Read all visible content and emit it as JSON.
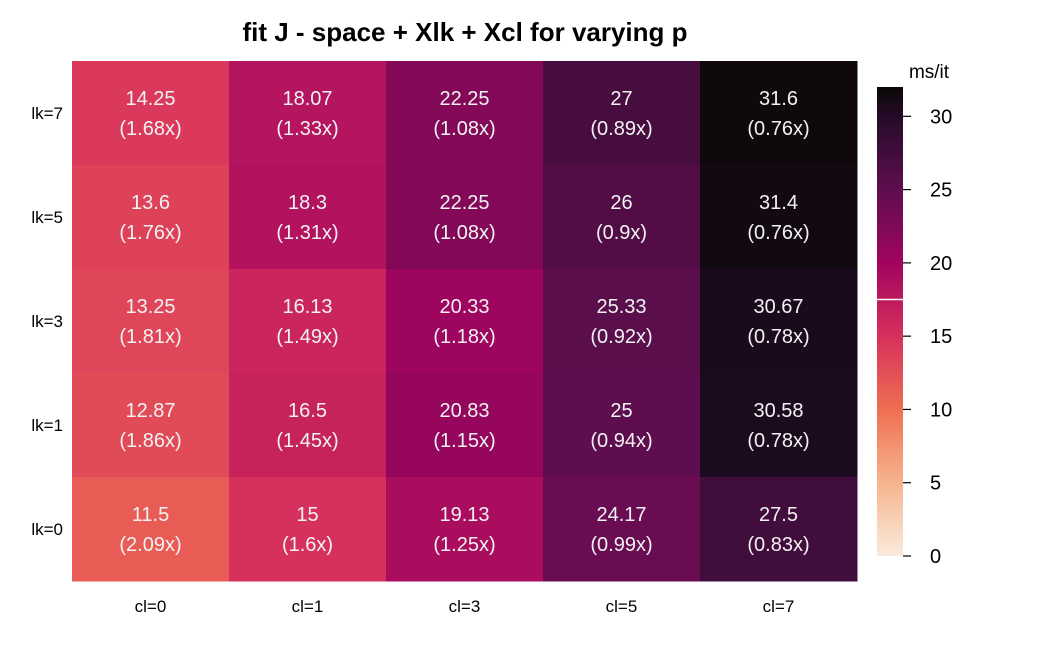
{
  "chart_data": {
    "type": "heatmap",
    "title": "fit J - space + Xlk + Xcl for varying p",
    "columns": [
      "cl=0",
      "cl=1",
      "cl=3",
      "cl=5",
      "cl=7"
    ],
    "rows": [
      "lk=7",
      "lk=5",
      "lk=3",
      "lk=1",
      "lk=0"
    ],
    "values": [
      [
        14.25,
        18.07,
        22.25,
        27,
        31.6
      ],
      [
        13.6,
        18.3,
        22.25,
        26,
        31.4
      ],
      [
        13.25,
        16.13,
        20.33,
        25.33,
        30.67
      ],
      [
        12.87,
        16.5,
        20.83,
        25,
        30.58
      ],
      [
        11.5,
        15,
        19.13,
        24.17,
        27.5
      ]
    ],
    "labels": [
      [
        "14.25",
        "18.07",
        "22.25",
        "27",
        "31.6"
      ],
      [
        "13.6",
        "18.3",
        "22.25",
        "26",
        "31.4"
      ],
      [
        "13.25",
        "16.13",
        "20.33",
        "25.33",
        "30.67"
      ],
      [
        "12.87",
        "16.5",
        "20.83",
        "25",
        "30.58"
      ],
      [
        "11.5",
        "15",
        "19.13",
        "24.17",
        "27.5"
      ]
    ],
    "speedups": [
      [
        "(1.68x)",
        "(1.33x)",
        "(1.08x)",
        "(0.89x)",
        "(0.76x)"
      ],
      [
        "(1.76x)",
        "(1.31x)",
        "(1.08x)",
        "(0.9x)",
        "(0.76x)"
      ],
      [
        "(1.81x)",
        "(1.49x)",
        "(1.18x)",
        "(0.92x)",
        "(0.78x)"
      ],
      [
        "(1.86x)",
        "(1.45x)",
        "(1.15x)",
        "(0.94x)",
        "(0.78x)"
      ],
      [
        "(2.09x)",
        "(1.6x)",
        "(1.25x)",
        "(0.99x)",
        "(0.83x)"
      ]
    ],
    "legend": {
      "title": "ms/it",
      "range": [
        0,
        32
      ],
      "ticks": [
        "0",
        "5",
        "10",
        "15",
        "20",
        "25",
        "30"
      ],
      "tick_values": [
        0,
        5,
        10,
        15,
        20,
        25,
        30
      ],
      "marker_value": 17.5,
      "placement": "right"
    },
    "colormap_stops": [
      {
        "value": 0,
        "color": "#faebdd"
      },
      {
        "value": 5,
        "color": "#f6b48f"
      },
      {
        "value": 10,
        "color": "#ef6f52"
      },
      {
        "value": 15,
        "color": "#d6305c"
      },
      {
        "value": 20,
        "color": "#a1045f"
      },
      {
        "value": 25,
        "color": "#5e0e4f"
      },
      {
        "value": 30,
        "color": "#240b28"
      },
      {
        "value": 32,
        "color": "#0a0807"
      }
    ]
  }
}
